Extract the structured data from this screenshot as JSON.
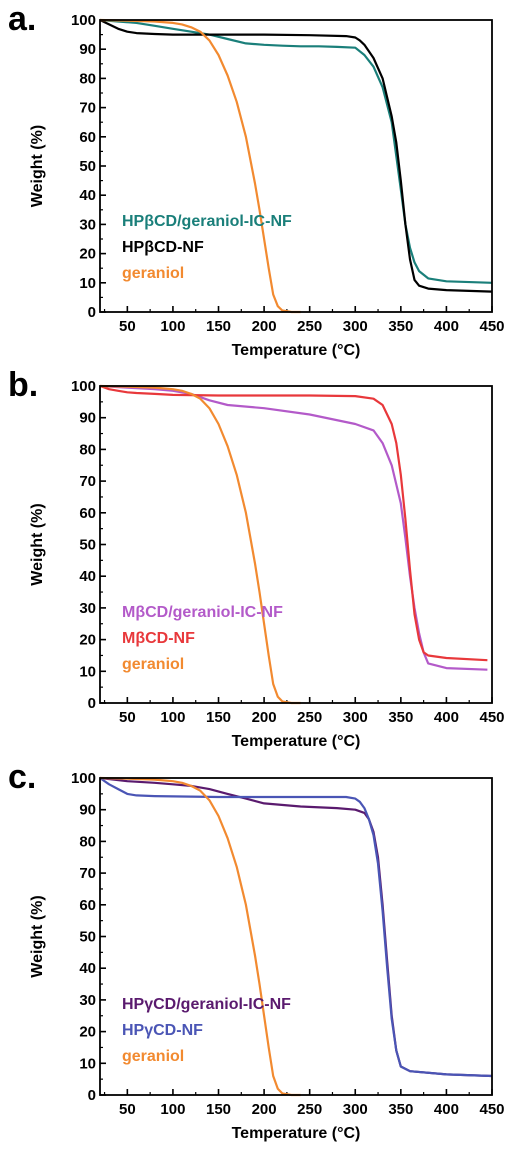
{
  "chart_data": [
    {
      "type": "line",
      "panel_label": "a.",
      "xlabel": "Temperature (°C)",
      "ylabel": "Weight (%)",
      "xlim": [
        20,
        450
      ],
      "ylim": [
        0,
        100
      ],
      "xticks": [
        50,
        100,
        150,
        200,
        250,
        300,
        350,
        400,
        450
      ],
      "yticks": [
        0,
        10,
        20,
        30,
        40,
        50,
        60,
        70,
        80,
        90,
        100
      ],
      "legend_position": "lower-left",
      "series": [
        {
          "name": "HPβCD/geraniol-IC-NF",
          "color": "#1a7f7a",
          "x": [
            20,
            40,
            60,
            80,
            100,
            120,
            140,
            160,
            180,
            200,
            220,
            240,
            260,
            280,
            300,
            310,
            320,
            330,
            340,
            350,
            355,
            360,
            365,
            370,
            380,
            400,
            450
          ],
          "y": [
            100,
            99.5,
            99,
            98,
            97,
            96,
            95,
            93.5,
            92,
            91.5,
            91.2,
            91,
            91,
            90.8,
            90.5,
            88,
            84,
            77,
            65,
            42,
            30,
            22,
            17,
            14,
            11.5,
            10.5,
            10
          ]
        },
        {
          "name": "HPβCD-NF",
          "color": "#000000",
          "x": [
            20,
            30,
            40,
            50,
            60,
            80,
            100,
            150,
            200,
            250,
            290,
            300,
            305,
            310,
            320,
            330,
            340,
            345,
            350,
            355,
            360,
            365,
            370,
            380,
            400,
            450
          ],
          "y": [
            100,
            98.5,
            97,
            96,
            95.5,
            95.2,
            95,
            95,
            95,
            94.8,
            94.5,
            94,
            93,
            91.5,
            87,
            80,
            67,
            58,
            45,
            30,
            18,
            11,
            9,
            8,
            7.5,
            7
          ]
        },
        {
          "name": "geraniol",
          "color": "#f28a30",
          "x": [
            20,
            50,
            80,
            100,
            110,
            120,
            130,
            140,
            150,
            160,
            170,
            180,
            190,
            195,
            200,
            205,
            210,
            215,
            220,
            230,
            240
          ],
          "y": [
            100,
            99.8,
            99.5,
            99,
            98.5,
            97.5,
            96,
            93,
            88,
            81,
            72,
            60,
            44,
            35,
            25,
            15,
            6,
            2,
            0.5,
            0,
            0
          ]
        }
      ]
    },
    {
      "type": "line",
      "panel_label": "b.",
      "xlabel": "Temperature (°C)",
      "ylabel": "Weight (%)",
      "xlim": [
        20,
        450
      ],
      "ylim": [
        0,
        100
      ],
      "xticks": [
        50,
        100,
        150,
        200,
        250,
        300,
        350,
        400,
        450
      ],
      "yticks": [
        0,
        10,
        20,
        30,
        40,
        50,
        60,
        70,
        80,
        90,
        100
      ],
      "legend_position": "lower-left",
      "series": [
        {
          "name": "MβCD/geraniol-IC-NF",
          "color": "#b35ac9",
          "x": [
            20,
            50,
            80,
            100,
            120,
            140,
            160,
            200,
            250,
            300,
            320,
            330,
            340,
            350,
            355,
            360,
            365,
            370,
            375,
            380,
            400,
            445
          ],
          "y": [
            100,
            99.5,
            99,
            98.5,
            97.5,
            95.5,
            94,
            93,
            91,
            88,
            86,
            82,
            75,
            63,
            52,
            40,
            30,
            22,
            16,
            12.5,
            11,
            10.5
          ]
        },
        {
          "name": "MβCD-NF",
          "color": "#e8383b",
          "x": [
            20,
            30,
            40,
            50,
            60,
            80,
            100,
            150,
            200,
            250,
            300,
            320,
            330,
            340,
            345,
            350,
            355,
            360,
            365,
            370,
            375,
            380,
            400,
            445
          ],
          "y": [
            100,
            99,
            98.5,
            98,
            97.8,
            97.5,
            97.2,
            97,
            97,
            97,
            96.8,
            96,
            94,
            88,
            82,
            72,
            58,
            42,
            28,
            20,
            16,
            15,
            14.2,
            13.5
          ]
        },
        {
          "name": "geraniol",
          "color": "#f28a30",
          "x": [
            20,
            50,
            80,
            100,
            110,
            120,
            130,
            140,
            150,
            160,
            170,
            180,
            190,
            195,
            200,
            205,
            210,
            215,
            220,
            230,
            240
          ],
          "y": [
            100,
            99.8,
            99.5,
            99,
            98.5,
            97.5,
            96,
            93,
            88,
            81,
            72,
            60,
            44,
            35,
            25,
            15,
            6,
            2,
            0.5,
            0,
            0
          ]
        }
      ]
    },
    {
      "type": "line",
      "panel_label": "c.",
      "xlabel": "Temperature (°C)",
      "ylabel": "Weight (%)",
      "xlim": [
        20,
        450
      ],
      "ylim": [
        0,
        100
      ],
      "xticks": [
        50,
        100,
        150,
        200,
        250,
        300,
        350,
        400,
        450
      ],
      "yticks": [
        0,
        10,
        20,
        30,
        40,
        50,
        60,
        70,
        80,
        90,
        100
      ],
      "legend_position": "lower-left",
      "series": [
        {
          "name": "HPγCD/geraniol-IC-NF",
          "color": "#5a1a6e",
          "x": [
            20,
            50,
            80,
            100,
            120,
            140,
            160,
            180,
            200,
            240,
            280,
            300,
            310,
            315,
            320,
            325,
            330,
            335,
            340,
            345,
            350,
            360,
            400,
            450
          ],
          "y": [
            100,
            99,
            98.5,
            98,
            97.5,
            96.5,
            95,
            93.5,
            92,
            91,
            90.5,
            90,
            89,
            87,
            83,
            75,
            60,
            42,
            25,
            14,
            9,
            7.5,
            6.5,
            6
          ]
        },
        {
          "name": "HPγCD-NF",
          "color": "#4a55b5",
          "x": [
            20,
            30,
            40,
            50,
            60,
            80,
            100,
            150,
            200,
            250,
            290,
            300,
            305,
            310,
            315,
            320,
            325,
            330,
            335,
            340,
            345,
            350,
            360,
            400,
            450
          ],
          "y": [
            100,
            98,
            96.5,
            95,
            94.5,
            94.3,
            94.2,
            94,
            94,
            94,
            94,
            93.5,
            92.5,
            90.5,
            87,
            82,
            73,
            58,
            40,
            24,
            14,
            9,
            7.5,
            6.5,
            6
          ]
        },
        {
          "name": "geraniol",
          "color": "#f28a30",
          "x": [
            20,
            50,
            80,
            100,
            110,
            120,
            130,
            140,
            150,
            160,
            170,
            180,
            190,
            195,
            200,
            205,
            210,
            215,
            220,
            230,
            240
          ],
          "y": [
            100,
            99.8,
            99.5,
            99,
            98.5,
            97.5,
            96,
            93,
            88,
            81,
            72,
            60,
            44,
            35,
            25,
            15,
            6,
            2,
            0.5,
            0,
            0
          ]
        }
      ]
    }
  ]
}
